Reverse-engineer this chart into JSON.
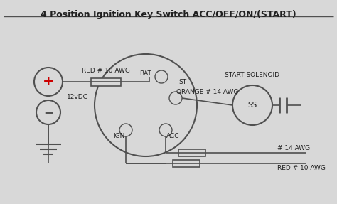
{
  "title": "4 Position Ignition Key Switch ACC/OFF/ON/(START)",
  "bg_color": "#d8d8d8",
  "line_color": "#505050",
  "text_color": "#202020",
  "plus_color": "#cc0000",
  "labels": {
    "red10_top": "RED # 10 AWG",
    "12vdc": "12vDC",
    "bat": "BAT",
    "st": "ST",
    "ign": "IGN",
    "acc": "ACC",
    "start_solenoid": "START SOLENOID",
    "ss": "SS",
    "orange14": "ORANGE # 14 AWG",
    "14awg": "# 14 AWG",
    "red10_bot": "RED # 10 AWG"
  },
  "bat_plus": [
    0.13,
    0.65
  ],
  "bat_plus_r": 0.042,
  "bat_minus": [
    0.13,
    0.5
  ],
  "bat_minus_r": 0.035,
  "sw_c": [
    0.4,
    0.52
  ],
  "sw_r": 0.155,
  "sol_c": [
    0.8,
    0.52
  ],
  "sol_r": 0.052
}
